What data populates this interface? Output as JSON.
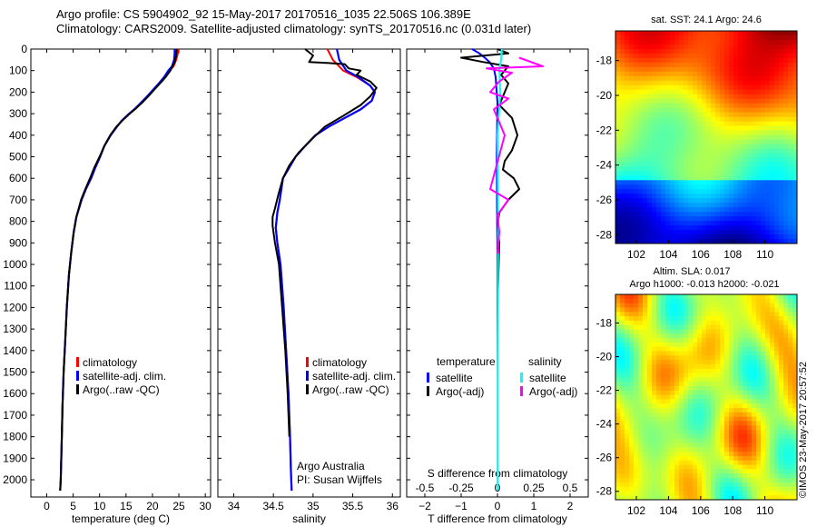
{
  "title_line1": "Argo profile: CS 5904902_92 15-May-2017 20170516_1035 22.506S 106.389E",
  "title_line2": "Climatology: CARS2009. Satellite-adjusted climatology: synTS_20170516.nc (0.031d later)",
  "stamp": "©IMOS 23-May-2017 20:57:52",
  "colors": {
    "climatology": "#ff0000",
    "satellite": "#0000ff",
    "argo": "#000000",
    "sat_s": "#00ffff",
    "argo_s": "#ff00ff"
  },
  "chart_data": [
    {
      "type": "line",
      "name": "temperature",
      "xlabel": "temperature (deg C)",
      "ylabel": "",
      "xlim": [
        -3,
        31
      ],
      "ylim": [
        2080,
        0
      ],
      "y_inverted": true,
      "xticks": [
        "0",
        "5",
        "10",
        "15",
        "20",
        "25",
        "30"
      ],
      "yticks": [
        "0",
        "100",
        "200",
        "300",
        "400",
        "500",
        "600",
        "700",
        "800",
        "900",
        "1000",
        "1100",
        "1200",
        "1300",
        "1400",
        "1500",
        "1600",
        "1700",
        "1800",
        "1900",
        "2000"
      ],
      "legend": [
        "climatology",
        "satellite-adj. clim.",
        "Argo(..raw -QC)"
      ],
      "legend_position": "lower-right",
      "series": [
        {
          "name": "climatology",
          "color": "#ff0000",
          "x": [
            24.9,
            24.8,
            24.5,
            24.0,
            23.2,
            22.3,
            21.2,
            20.1,
            19.0,
            17.8,
            16.8,
            15.6,
            14.3,
            13.3,
            12.1,
            10.9,
            10.1,
            9.2,
            8.4,
            7.4,
            6.6,
            5.6,
            5.1,
            4.6,
            4.2,
            3.8,
            3.5,
            3.2,
            3.0,
            2.85,
            2.75,
            2.65,
            2.55
          ],
          "y": [
            0,
            20,
            50,
            80,
            100,
            130,
            160,
            190,
            220,
            250,
            275,
            300,
            330,
            360,
            400,
            450,
            500,
            550,
            600,
            650,
            700,
            780,
            850,
            950,
            1050,
            1200,
            1350,
            1500,
            1650,
            1800,
            1900,
            2000,
            2050
          ]
        },
        {
          "name": "satellite-adj. clim.",
          "color": "#0000ff",
          "x": [
            24.2,
            24.2,
            24.1,
            23.7,
            23.0,
            22.2,
            21.2,
            20.1,
            19.0,
            17.8,
            16.8,
            15.6,
            14.3,
            13.3,
            12.1,
            10.9,
            10.1,
            9.2,
            8.4,
            7.4,
            6.6,
            5.6,
            5.1,
            4.6,
            4.2,
            3.8,
            3.5,
            3.2,
            3.0,
            2.85,
            2.75,
            2.65,
            2.55
          ],
          "y": [
            0,
            20,
            50,
            80,
            100,
            130,
            160,
            190,
            220,
            250,
            275,
            300,
            330,
            360,
            400,
            450,
            500,
            550,
            600,
            650,
            700,
            780,
            850,
            950,
            1050,
            1200,
            1350,
            1500,
            1650,
            1800,
            1900,
            2000,
            2050
          ]
        },
        {
          "name": "Argo(..raw -QC)",
          "color": "#000000",
          "x": [
            24.6,
            24.5,
            24.2,
            23.4,
            22.5,
            21.4,
            20.3,
            19.2,
            18.0,
            16.9,
            15.7,
            14.4,
            13.2,
            12.0,
            10.9,
            10.0,
            9.0,
            8.2,
            7.3,
            6.5,
            5.6,
            5.1,
            4.6,
            4.2,
            3.8,
            3.5,
            3.2,
            3.0,
            2.85,
            2.75,
            2.65,
            2.55
          ],
          "y": [
            0,
            30,
            60,
            100,
            130,
            160,
            190,
            220,
            250,
            275,
            300,
            330,
            360,
            400,
            450,
            500,
            550,
            600,
            650,
            700,
            780,
            850,
            950,
            1050,
            1200,
            1350,
            1500,
            1650,
            1800,
            1900,
            2000,
            2050
          ]
        }
      ]
    },
    {
      "type": "line",
      "name": "salinity",
      "xlabel": "salinity",
      "ylabel": "",
      "xlim": [
        33.8,
        36.1
      ],
      "ylim": [
        2080,
        0
      ],
      "y_inverted": true,
      "xticks": [
        "34",
        "34.5",
        "35",
        "35.5",
        "36"
      ],
      "legend": [
        "climatology",
        "satellite-adj. clim.",
        "Argo(..raw -QC)"
      ],
      "legend_position": "lower-right",
      "annotation": [
        "Argo Australia",
        "PI: Susan Wijffels"
      ],
      "series": [
        {
          "name": "climatology",
          "color": "#ff0000",
          "x": [
            35.18,
            35.25,
            35.38,
            35.55,
            35.72,
            35.78,
            35.74,
            35.6,
            35.4,
            35.2,
            35.03,
            34.9,
            34.78,
            34.7,
            34.62,
            34.58,
            34.55,
            34.53,
            34.55,
            34.59,
            34.63,
            34.66,
            34.69,
            34.71,
            34.72,
            34.73
          ],
          "y": [
            0,
            50,
            100,
            130,
            170,
            200,
            240,
            280,
            320,
            360,
            400,
            450,
            500,
            550,
            600,
            700,
            760,
            830,
            900,
            1000,
            1200,
            1400,
            1600,
            1800,
            1950,
            2050
          ]
        },
        {
          "name": "satellite-adj. clim.",
          "color": "#0000ff",
          "x": [
            35.3,
            35.33,
            35.42,
            35.57,
            35.72,
            35.78,
            35.74,
            35.6,
            35.4,
            35.2,
            35.03,
            34.9,
            34.78,
            34.7,
            34.62,
            34.58,
            34.55,
            34.53,
            34.55,
            34.59,
            34.63,
            34.66,
            34.69,
            34.71,
            34.72,
            34.73
          ],
          "y": [
            0,
            50,
            100,
            130,
            170,
            200,
            240,
            280,
            320,
            360,
            400,
            450,
            500,
            550,
            600,
            700,
            760,
            830,
            900,
            1000,
            1200,
            1400,
            1600,
            1800,
            1950,
            2050
          ]
        },
        {
          "name": "Argo(..raw -QC)",
          "color": "#000000",
          "x": [
            34.9,
            35.0,
            34.95,
            35.2,
            35.4,
            35.45,
            35.6,
            35.55,
            35.72,
            35.8,
            35.72,
            35.6,
            35.38,
            35.15,
            34.98,
            34.82,
            34.7,
            34.62,
            34.56,
            34.52,
            34.49,
            34.49,
            34.52,
            34.57,
            34.61,
            34.65,
            34.68,
            34.7
          ],
          "y": [
            0,
            30,
            60,
            65,
            70,
            90,
            100,
            120,
            150,
            180,
            220,
            260,
            310,
            360,
            420,
            480,
            540,
            600,
            680,
            740,
            780,
            820,
            900,
            1000,
            1200,
            1400,
            1600,
            1800
          ]
        }
      ]
    },
    {
      "type": "line",
      "name": "difference",
      "xlabel": "T difference from climatology",
      "xlabel_top": "S difference from climatology",
      "xlim": [
        -2.5,
        2.5
      ],
      "ylim": [
        2080,
        0
      ],
      "y_inverted": true,
      "xticks": [
        "−2",
        "−1",
        "0",
        "1",
        "2"
      ],
      "xticks_top": [
        "-0.5",
        "-0.25",
        "0",
        "0.25",
        "0.5"
      ],
      "legend_titles": [
        "temperature",
        "salinity"
      ],
      "legend": [
        "satellite",
        "Argo(-adj)",
        "satellite",
        "Argo(-adj)"
      ],
      "legend_position": "lower-center",
      "series": [
        {
          "name": "satellite",
          "color": "#0000ff",
          "x": [
            -0.7,
            -0.5,
            -0.35,
            -0.22,
            -0.1,
            -0.05,
            0.0,
            -0.02,
            0.0,
            0.0
          ],
          "y": [
            0,
            20,
            40,
            60,
            90,
            130,
            250,
            500,
            1000,
            2050
          ]
        },
        {
          "name": "Argo(-adj)",
          "color": "#000000",
          "x": [
            0.0,
            0.3,
            -1.0,
            -0.4,
            0.3,
            0.1,
            0.3,
            0.2,
            0.05,
            0.4,
            0.55,
            0.4,
            0.2,
            0.15,
            0.45,
            0.6,
            0.3,
            0.05,
            0.0,
            0.05,
            0.0,
            0.0
          ],
          "y": [
            0,
            20,
            40,
            60,
            80,
            120,
            160,
            200,
            260,
            320,
            400,
            470,
            520,
            560,
            600,
            650,
            700,
            760,
            820,
            900,
            1200,
            2000
          ]
        },
        {
          "name": "satellite",
          "color": "#00ffff",
          "x": [
            0.12,
            0.1,
            0.05,
            0.08,
            0.0,
            0.02,
            0.0,
            0.0
          ],
          "y": [
            0,
            50,
            100,
            200,
            400,
            800,
            1500,
            2050
          ]
        },
        {
          "name": "Argo(-adj)",
          "color": "#ff00ff",
          "x": [
            0.6,
            1.25,
            -0.3,
            0.4,
            0.05,
            -0.2,
            0.3,
            -0.1,
            0.2,
            -0.2,
            0.3,
            0.0,
            0.05,
            0.0
          ],
          "y": [
            40,
            80,
            90,
            110,
            150,
            200,
            230,
            280,
            400,
            650,
            700,
            770,
            850,
            950
          ]
        }
      ]
    }
  ],
  "maps": [
    {
      "type": "heatmap",
      "title": "sat. SST: 24.1  Argo: 24.6",
      "x_ticks": [
        "102",
        "104",
        "106",
        "108",
        "110"
      ],
      "y_ticks": [
        "-18",
        "-20",
        "-22",
        "-24",
        "-26",
        "-28"
      ],
      "colormap": "jet"
    },
    {
      "type": "heatmap",
      "title_line1": "Altim. SLA: 0.017",
      "title_line2": "Argo h1000: -0.013  h2000: -0.021",
      "x_ticks": [
        "102",
        "104",
        "106",
        "108",
        "110"
      ],
      "y_ticks": [
        "-18",
        "-20",
        "-22",
        "-24",
        "-26",
        "-28"
      ],
      "colormap": "jet"
    }
  ]
}
